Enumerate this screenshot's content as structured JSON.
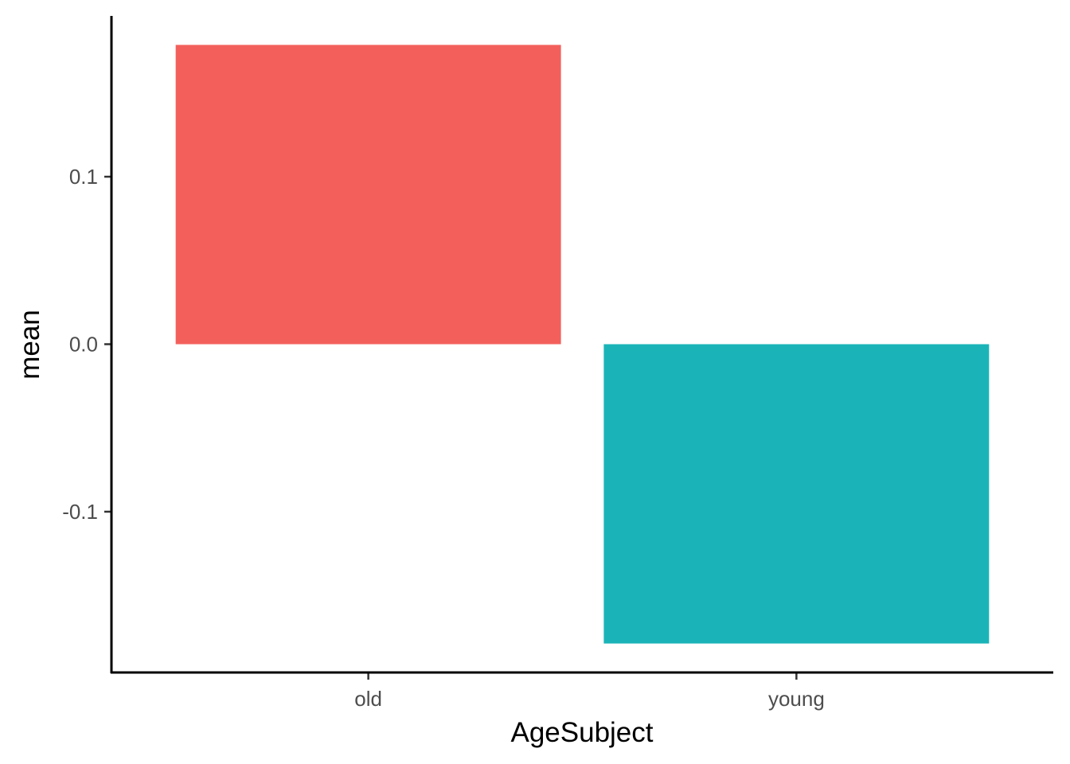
{
  "chart_data": {
    "type": "bar",
    "categories": [
      "old",
      "young"
    ],
    "values": [
      0.1787,
      -0.1787
    ],
    "colors": [
      "#F3605C",
      "#1AB4B8"
    ],
    "xlabel": "AgeSubject",
    "ylabel": "mean",
    "yticks": [
      -0.1,
      0.0,
      0.1
    ],
    "ytick_labels": [
      "-0.1",
      "0.0",
      "0.1"
    ],
    "ylim": [
      -0.196,
      0.196
    ],
    "grid": false,
    "legend": "none"
  }
}
